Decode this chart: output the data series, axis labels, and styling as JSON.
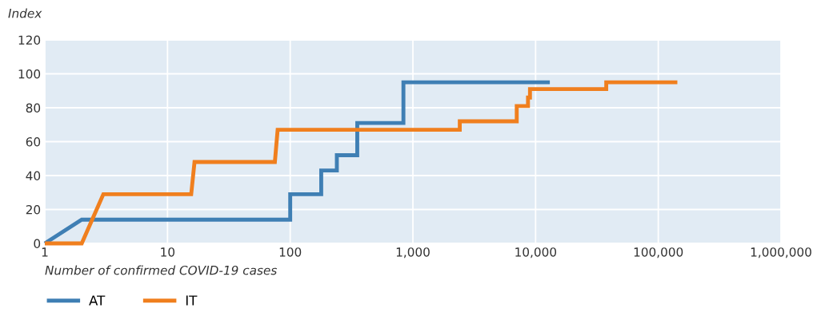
{
  "chart_data": {
    "type": "line",
    "ylabel": "Index",
    "xlabel": "Number of confirmed COVID-19 cases",
    "log": "x",
    "grid": true,
    "legend": "bottom",
    "line_style": "solid",
    "marker": "none",
    "xlim": [
      1,
      1000000
    ],
    "xticks": [
      1,
      10,
      100,
      {
        "value": 1000,
        "label": "1,000"
      },
      {
        "value": 10000,
        "label": "10,000"
      },
      {
        "value": 100000,
        "label": "100,000"
      },
      {
        "value": 1000000,
        "label": "1,000,000"
      }
    ],
    "ylim": [
      0,
      120
    ],
    "yticks": [
      0,
      20,
      40,
      60,
      80,
      100,
      120
    ],
    "series": [
      {
        "name": "AT",
        "color": "#3f7fb4",
        "x": [
          1,
          2,
          100,
          100,
          179,
          179,
          240,
          240,
          352,
          352,
          837,
          837,
          13060
        ],
        "values": [
          0,
          14,
          14,
          29,
          29,
          43,
          43,
          52,
          52,
          71,
          71,
          95,
          95
        ]
      },
      {
        "name": "IT",
        "color": "#f07f1e",
        "x": [
          1,
          2,
          3,
          15.6,
          16.6,
          75,
          79,
          2410,
          2410,
          7020,
          7020,
          8670,
          8670,
          9000,
          9000,
          37650,
          37650,
          143000
        ],
        "values": [
          0,
          0,
          29,
          29,
          48,
          48,
          67,
          67,
          72,
          72,
          81,
          81,
          86,
          86,
          91,
          91,
          95,
          95
        ]
      }
    ]
  }
}
